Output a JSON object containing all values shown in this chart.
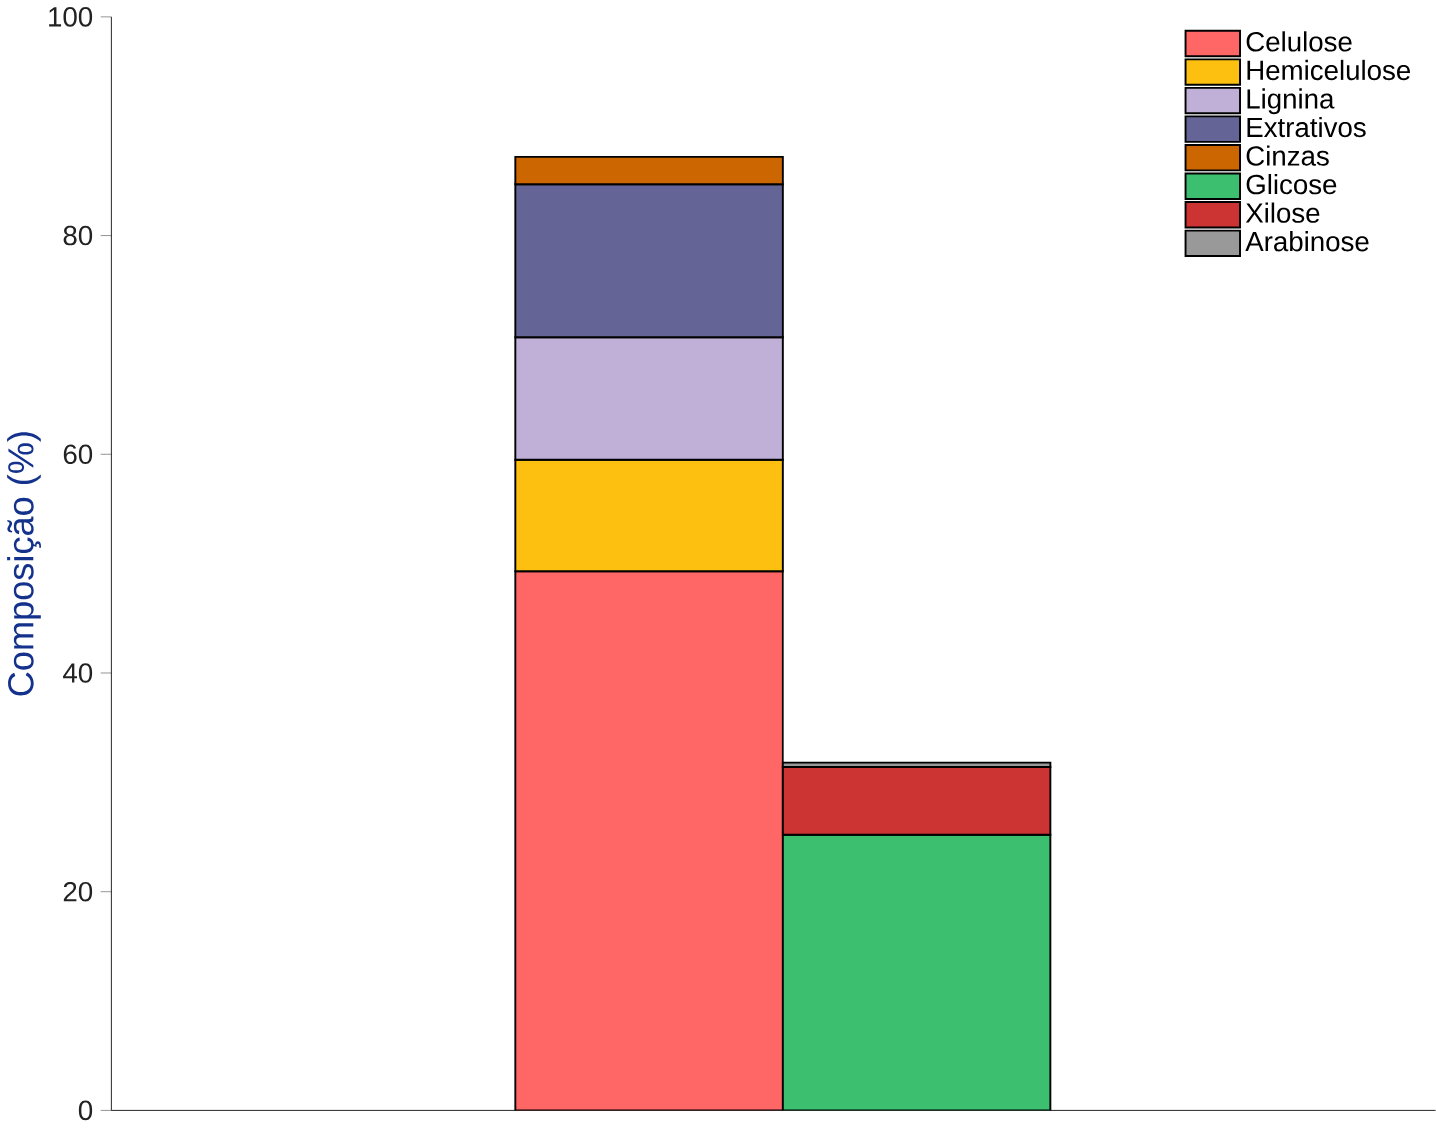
{
  "chart_data": {
    "type": "bar",
    "stacked": true,
    "ylabel": "Composição (%)",
    "categories": [
      null,
      null
    ],
    "series": [
      {
        "name": "Celulose",
        "color": "#ff6666",
        "values": [
          49.3,
          null
        ]
      },
      {
        "name": "Hemicelulose",
        "color": "#fdc010",
        "values": [
          10.2,
          null
        ]
      },
      {
        "name": "Lignina",
        "color": "#c0b0d8",
        "values": [
          11.2,
          null
        ]
      },
      {
        "name": "Extrativos",
        "color": "#646496",
        "values": [
          14.0,
          null
        ]
      },
      {
        "name": "Cinzas",
        "color": "#cc6600",
        "values": [
          2.5,
          null
        ]
      },
      {
        "name": "Glicose",
        "color": "#3cc070",
        "values": [
          null,
          25.2
        ]
      },
      {
        "name": "Xilose",
        "color": "#cc3333",
        "values": [
          null,
          6.2
        ]
      },
      {
        "name": "Arabinose",
        "color": "#999999",
        "values": [
          null,
          0.4
        ]
      }
    ],
    "ylim": [
      0,
      100
    ],
    "yticks": [
      0,
      20,
      40,
      60,
      80,
      100
    ],
    "legend": "top right",
    "grid": false,
    "tick_labels": "y"
  }
}
